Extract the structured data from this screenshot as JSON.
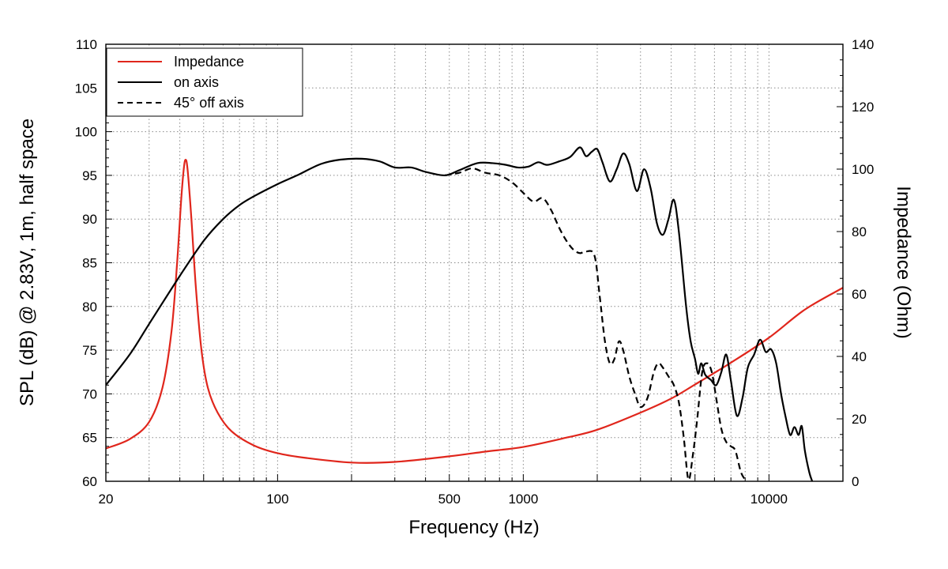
{
  "chart_data": {
    "type": "line",
    "xscale": "log",
    "xlabel": "Frequency (Hz)",
    "ylabel_left": "SPL (dB) @ 2.83V, 1m, half space",
    "ylabel_right": "Impedance (Ohm)",
    "xlim": [
      20,
      20000
    ],
    "ylim_left": [
      60,
      110
    ],
    "ylim_right": [
      0,
      140
    ],
    "x_tick_values": [
      20,
      100,
      500,
      1000,
      10000
    ],
    "x_tick_labels": [
      "20",
      "100",
      "500",
      "1000",
      "10000"
    ],
    "y_left_tick_values": [
      60,
      65,
      70,
      75,
      80,
      85,
      90,
      95,
      100,
      105,
      110
    ],
    "y_left_tick_labels": [
      "60",
      "65",
      "70",
      "75",
      "80",
      "85",
      "90",
      "95",
      "100",
      "105",
      "110"
    ],
    "y_right_tick_values": [
      0,
      20,
      40,
      60,
      80,
      100,
      120,
      140
    ],
    "y_right_tick_labels": [
      "0",
      "20",
      "40",
      "60",
      "80",
      "100",
      "120",
      "140"
    ],
    "grid": true,
    "legend": {
      "position": "top-left",
      "entries": [
        "Impedance",
        "on axis",
        "45° off axis"
      ]
    },
    "series": [
      {
        "name": "Impedance",
        "axis": "right",
        "color": "#e0261c",
        "dash": "solid",
        "points": [
          [
            20,
            10.5
          ],
          [
            25,
            13.5
          ],
          [
            30,
            19
          ],
          [
            34,
            30
          ],
          [
            37,
            48
          ],
          [
            39,
            70
          ],
          [
            40.5,
            90
          ],
          [
            41.5,
            100
          ],
          [
            42.2,
            103
          ],
          [
            43,
            100
          ],
          [
            44.5,
            85
          ],
          [
            46.5,
            62
          ],
          [
            49,
            42
          ],
          [
            52,
            30
          ],
          [
            57,
            22
          ],
          [
            65,
            16
          ],
          [
            80,
            11.5
          ],
          [
            100,
            9
          ],
          [
            130,
            7.5
          ],
          [
            200,
            6
          ],
          [
            300,
            6.2
          ],
          [
            500,
            8
          ],
          [
            700,
            9.5
          ],
          [
            1000,
            11
          ],
          [
            1500,
            14
          ],
          [
            2000,
            16.5
          ],
          [
            3000,
            22
          ],
          [
            4000,
            26.5
          ],
          [
            5000,
            31
          ],
          [
            7000,
            38
          ],
          [
            10000,
            46
          ],
          [
            14000,
            55
          ],
          [
            20000,
            62
          ]
        ]
      },
      {
        "name": "on axis",
        "axis": "left",
        "color": "#000000",
        "dash": "solid",
        "points": [
          [
            20,
            71
          ],
          [
            25,
            74.5
          ],
          [
            30,
            78
          ],
          [
            40,
            83.5
          ],
          [
            50,
            87.5
          ],
          [
            60,
            90
          ],
          [
            70,
            91.6
          ],
          [
            80,
            92.6
          ],
          [
            100,
            94
          ],
          [
            120,
            95
          ],
          [
            150,
            96.3
          ],
          [
            180,
            96.8
          ],
          [
            220,
            96.9
          ],
          [
            260,
            96.6
          ],
          [
            300,
            95.9
          ],
          [
            350,
            95.9
          ],
          [
            400,
            95.4
          ],
          [
            480,
            95.0
          ],
          [
            550,
            95.6
          ],
          [
            650,
            96.4
          ],
          [
            750,
            96.4
          ],
          [
            850,
            96.2
          ],
          [
            950,
            95.9
          ],
          [
            1050,
            96.0
          ],
          [
            1150,
            96.5
          ],
          [
            1250,
            96.2
          ],
          [
            1400,
            96.6
          ],
          [
            1550,
            97.1
          ],
          [
            1700,
            98.2
          ],
          [
            1800,
            97.2
          ],
          [
            1900,
            97.7
          ],
          [
            2000,
            98.0
          ],
          [
            2100,
            96.5
          ],
          [
            2250,
            94.3
          ],
          [
            2400,
            95.7
          ],
          [
            2550,
            97.5
          ],
          [
            2700,
            96.3
          ],
          [
            2900,
            93.2
          ],
          [
            3100,
            95.7
          ],
          [
            3300,
            93.5
          ],
          [
            3500,
            89.5
          ],
          [
            3700,
            88.2
          ],
          [
            3900,
            90.0
          ],
          [
            4100,
            92.2
          ],
          [
            4300,
            88.5
          ],
          [
            4600,
            80
          ],
          [
            4800,
            76
          ],
          [
            5000,
            74
          ],
          [
            5150,
            72.3
          ],
          [
            5300,
            73.5
          ],
          [
            5500,
            72.2
          ],
          [
            5800,
            71.6
          ],
          [
            6100,
            71.0
          ],
          [
            6400,
            72.5
          ],
          [
            6700,
            74.5
          ],
          [
            7000,
            71.5
          ],
          [
            7400,
            67.5
          ],
          [
            7800,
            69.5
          ],
          [
            8200,
            73.0
          ],
          [
            8700,
            74.5
          ],
          [
            9200,
            76.2
          ],
          [
            9700,
            74.8
          ],
          [
            10200,
            75.1
          ],
          [
            10700,
            73.5
          ],
          [
            11200,
            70.0
          ],
          [
            11700,
            67.3
          ],
          [
            12200,
            65.3
          ],
          [
            12700,
            66.2
          ],
          [
            13200,
            65.3
          ],
          [
            13600,
            66.3
          ],
          [
            14000,
            63.5
          ],
          [
            14600,
            61
          ],
          [
            15000,
            60
          ]
        ]
      },
      {
        "name": "45° off axis",
        "axis": "left",
        "color": "#000000",
        "dash": "dashed",
        "points": [
          [
            480,
            95.0
          ],
          [
            550,
            95.3
          ],
          [
            620,
            95.8
          ],
          [
            700,
            95.3
          ],
          [
            800,
            95.0
          ],
          [
            900,
            94.2
          ],
          [
            1000,
            93.0
          ],
          [
            1100,
            92.0
          ],
          [
            1200,
            92.4
          ],
          [
            1300,
            91.0
          ],
          [
            1400,
            89.0
          ],
          [
            1500,
            87.5
          ],
          [
            1600,
            86.5
          ],
          [
            1700,
            86.1
          ],
          [
            1800,
            86.3
          ],
          [
            1950,
            85.8
          ],
          [
            2050,
            81.0
          ],
          [
            2150,
            76.0
          ],
          [
            2250,
            73.5
          ],
          [
            2350,
            74.0
          ],
          [
            2450,
            76.0
          ],
          [
            2550,
            75.0
          ],
          [
            2700,
            72.0
          ],
          [
            2850,
            70.0
          ],
          [
            3000,
            68.5
          ],
          [
            3200,
            69.5
          ],
          [
            3400,
            72.5
          ],
          [
            3550,
            73.5
          ],
          [
            3700,
            73.0
          ],
          [
            3900,
            72.0
          ],
          [
            4100,
            71.0
          ],
          [
            4300,
            69.0
          ],
          [
            4500,
            65.0
          ],
          [
            4700,
            60.2
          ],
          [
            4900,
            63.0
          ],
          [
            5100,
            67.0
          ],
          [
            5350,
            72.5
          ],
          [
            5600,
            73.5
          ],
          [
            5850,
            72.5
          ],
          [
            6100,
            69.5
          ],
          [
            6400,
            66.0
          ],
          [
            6700,
            64.5
          ],
          [
            7000,
            64.0
          ],
          [
            7300,
            63.5
          ],
          [
            7700,
            61.0
          ],
          [
            8100,
            60.0
          ]
        ]
      }
    ]
  }
}
